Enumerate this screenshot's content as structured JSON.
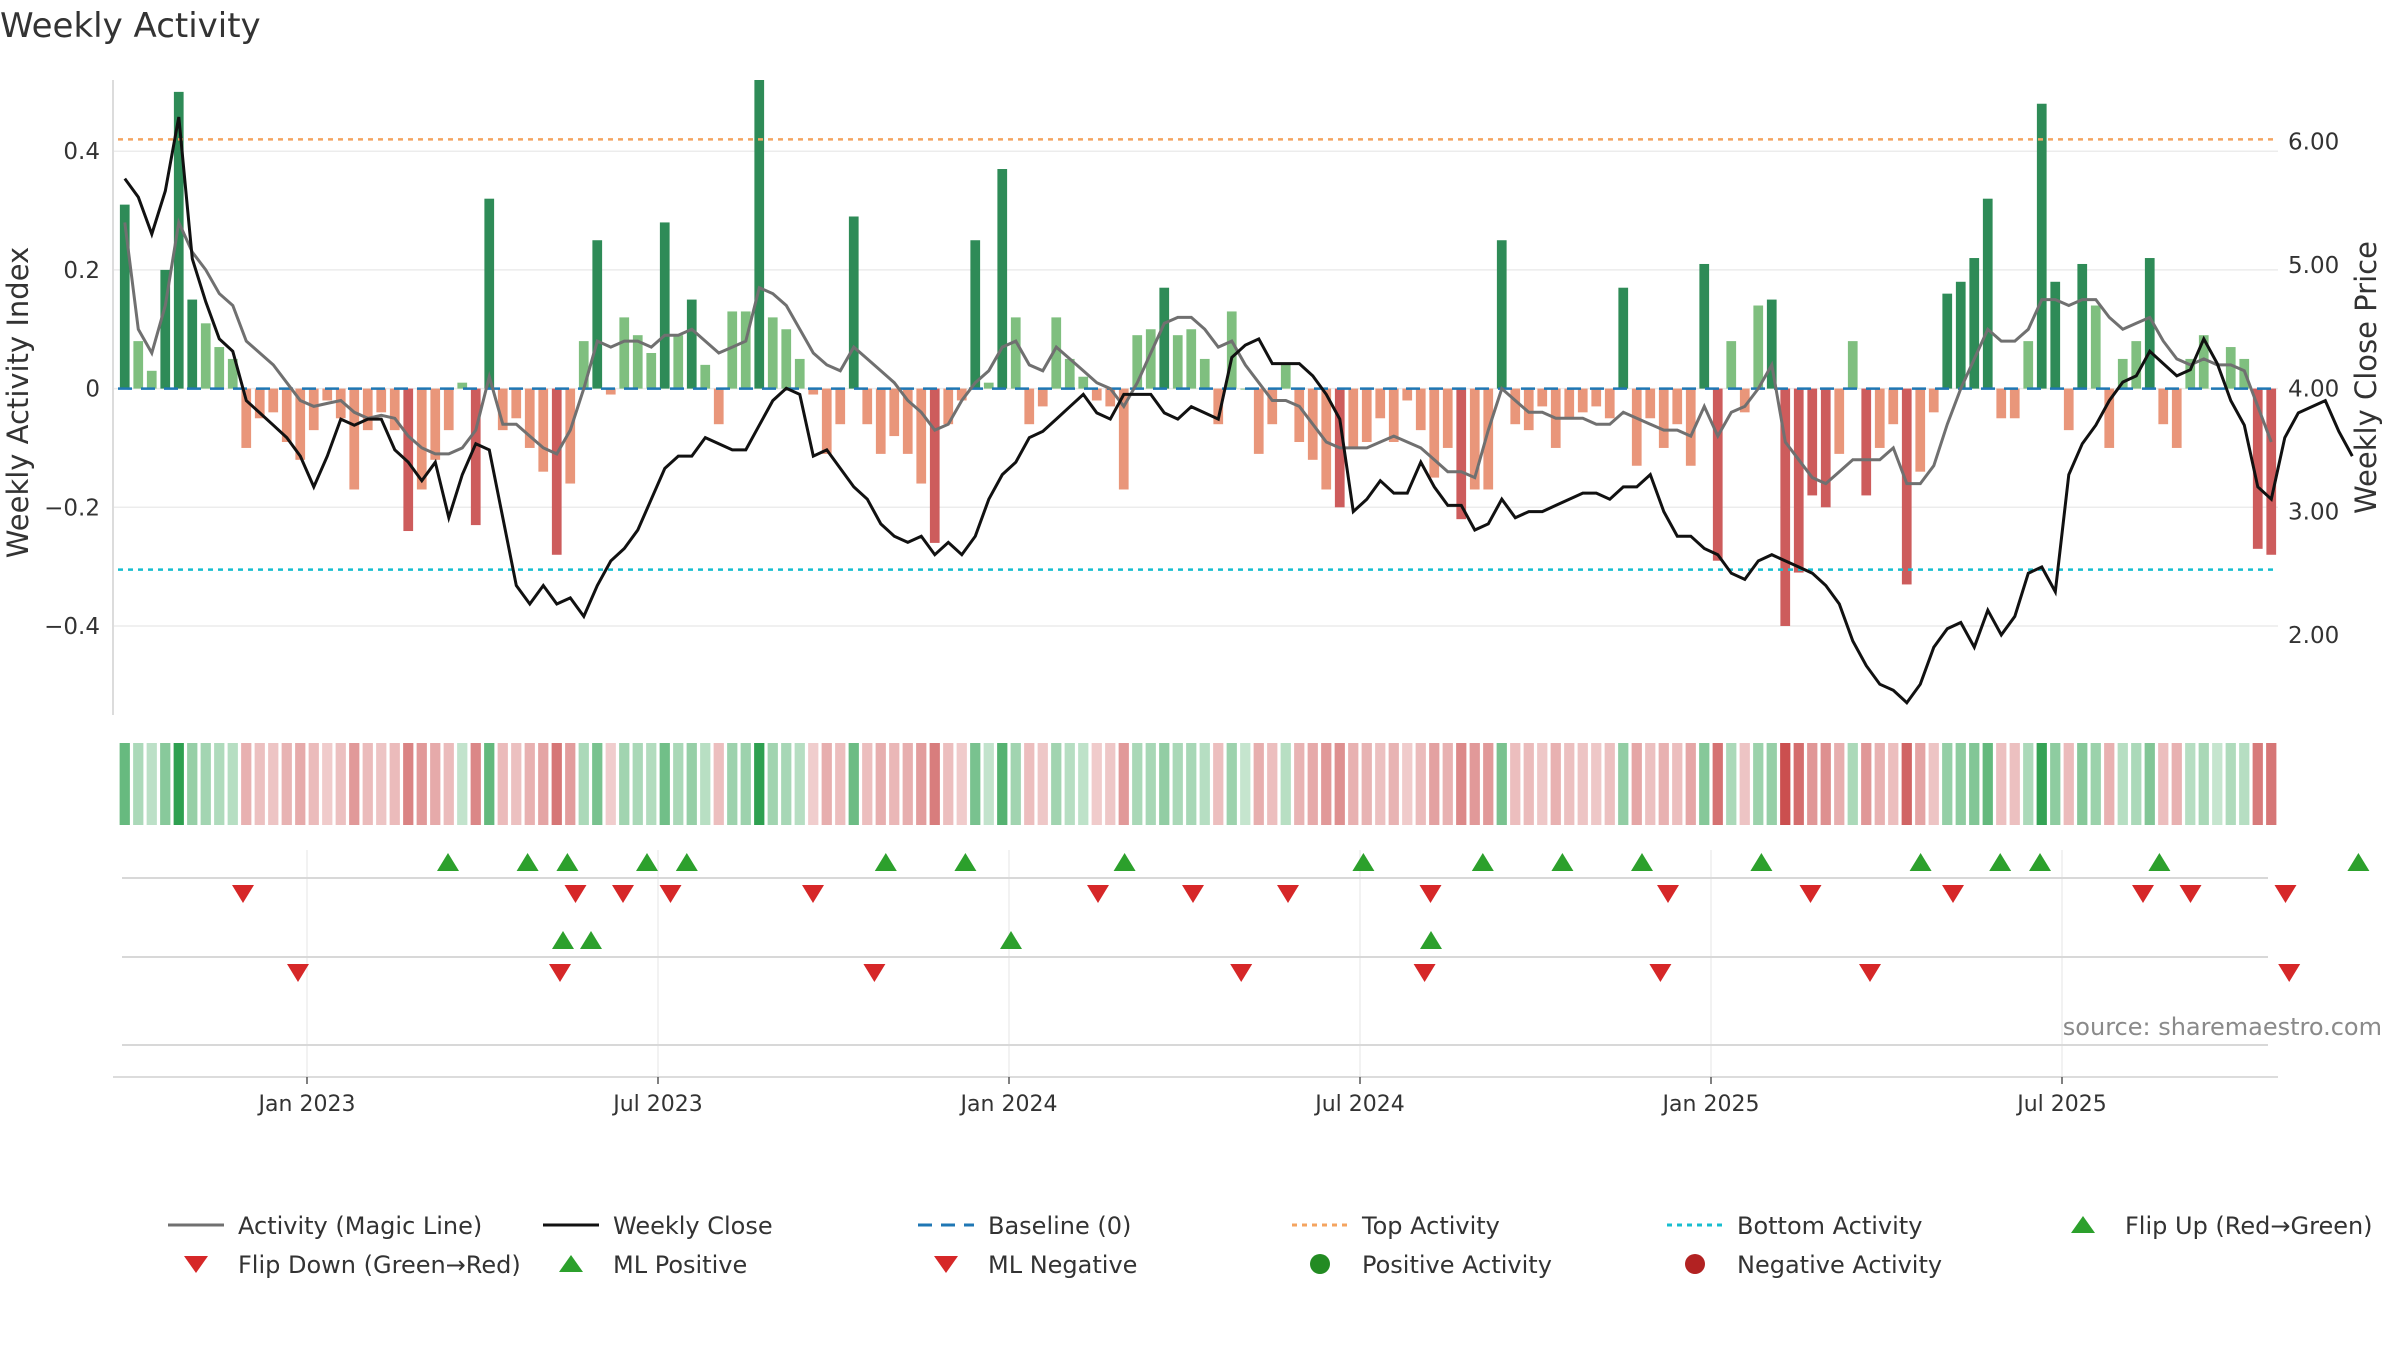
{
  "title": "Weekly Activity",
  "source": "source: sharemaestro.com",
  "chart_data": {
    "type": "bar",
    "ylabel": "Weekly Activity Index",
    "y2label": "Weekly Close Price",
    "ylim": [
      -0.55,
      0.52
    ],
    "y2lim": [
      1.35,
      6.5
    ],
    "yticks": [
      0.4,
      0.2,
      0,
      -0.2,
      -0.4
    ],
    "yticklabels": [
      "0.4",
      "0.2",
      "0",
      "−0.2",
      "−0.4"
    ],
    "y2ticks": [
      6.0,
      5.0,
      4.0,
      3.0,
      2.0
    ],
    "y2ticklabels": [
      "6.00",
      "5.00",
      "4.00",
      "3.00",
      "2.00"
    ],
    "xticks": [
      "Jan 2023",
      "Jul 2023",
      "Jan 2024",
      "Jul 2024",
      "Jan 2025",
      "Jul 2025"
    ],
    "xtick_weeks": [
      13.5,
      39.5,
      65.5,
      91.5,
      117.5,
      143.5
    ],
    "top_activity": 0.42,
    "bottom_activity": -0.305,
    "grid": true,
    "legend_position": "bottom",
    "legend": [
      "Activity (Magic Line)",
      "Weekly Close",
      "Baseline (0)",
      "Top Activity",
      "Bottom Activity",
      "Flip Up (Red→Green)",
      "Flip Down (Green→Red)",
      "ML Positive",
      "ML Negative",
      "Positive Activity",
      "Negative Activity"
    ],
    "colors": {
      "strong_green": "#2e8b57",
      "light_green": "#7fbf7f",
      "strong_red": "#cd5c5c",
      "light_red": "#e9967a",
      "magic_line": "#707070",
      "close": "#111111",
      "baseline": "#1f77b4",
      "top": "#f4a460",
      "bottom": "#17becf",
      "flip_up": "#2ca02c",
      "flip_down": "#d62728",
      "pos_dot": "#228b22",
      "neg_dot": "#b22222"
    },
    "activity": [
      0.31,
      0.08,
      0.03,
      0.2,
      0.5,
      0.15,
      0.11,
      0.07,
      0.05,
      -0.1,
      -0.05,
      -0.04,
      -0.09,
      -0.12,
      -0.07,
      -0.02,
      -0.05,
      -0.17,
      -0.07,
      -0.04,
      -0.07,
      -0.24,
      -0.17,
      -0.12,
      -0.07,
      0.01,
      -0.23,
      0.32,
      -0.07,
      -0.05,
      -0.1,
      -0.14,
      -0.28,
      -0.16,
      0.08,
      0.25,
      -0.01,
      0.12,
      0.09,
      0.06,
      0.28,
      0.09,
      0.15,
      0.04,
      -0.06,
      0.13,
      0.13,
      0.52,
      0.12,
      0.1,
      0.05,
      -0.01,
      -0.11,
      -0.06,
      0.29,
      -0.06,
      -0.11,
      -0.08,
      -0.11,
      -0.16,
      -0.26,
      -0.06,
      -0.02,
      0.25,
      0.01,
      0.37,
      0.12,
      -0.06,
      -0.03,
      0.12,
      0.05,
      0.02,
      -0.02,
      -0.03,
      -0.17,
      0.09,
      0.1,
      0.17,
      0.09,
      0.1,
      0.05,
      -0.06,
      0.13,
      0.0,
      -0.11,
      -0.06,
      0.04,
      -0.09,
      -0.12,
      -0.17,
      -0.2,
      -0.1,
      -0.09,
      -0.05,
      -0.09,
      -0.02,
      -0.07,
      -0.15,
      -0.1,
      -0.22,
      -0.17,
      -0.17,
      0.25,
      -0.06,
      -0.07,
      -0.03,
      -0.1,
      -0.05,
      -0.04,
      -0.03,
      -0.05,
      0.17,
      -0.13,
      -0.05,
      -0.1,
      -0.06,
      -0.13,
      0.21,
      -0.29,
      0.08,
      -0.04,
      0.14,
      0.15,
      -0.4,
      -0.31,
      -0.18,
      -0.2,
      -0.11,
      0.08,
      -0.18,
      -0.1,
      -0.06,
      -0.33,
      -0.14,
      -0.04,
      0.16,
      0.18,
      0.22,
      0.32,
      -0.05,
      -0.05,
      0.08,
      0.48,
      0.18,
      -0.07,
      0.21,
      0.14,
      -0.1,
      0.05,
      0.08,
      0.22,
      -0.06,
      -0.1,
      0.05,
      0.09,
      0.0,
      0.07,
      0.05,
      -0.27,
      -0.28
    ],
    "magic_line": [
      0.28,
      0.1,
      0.06,
      0.14,
      0.28,
      0.23,
      0.2,
      0.16,
      0.14,
      0.08,
      0.06,
      0.04,
      0.01,
      -0.02,
      -0.03,
      -0.025,
      -0.02,
      -0.04,
      -0.05,
      -0.045,
      -0.05,
      -0.08,
      -0.1,
      -0.11,
      -0.11,
      -0.1,
      -0.07,
      0.02,
      -0.06,
      -0.06,
      -0.08,
      -0.1,
      -0.11,
      -0.07,
      0.0,
      0.08,
      0.07,
      0.08,
      0.08,
      0.07,
      0.09,
      0.09,
      0.1,
      0.08,
      0.06,
      0.07,
      0.08,
      0.17,
      0.16,
      0.14,
      0.1,
      0.06,
      0.04,
      0.03,
      0.07,
      0.05,
      0.03,
      0.01,
      -0.02,
      -0.04,
      -0.07,
      -0.06,
      -0.02,
      0.01,
      0.03,
      0.07,
      0.08,
      0.04,
      0.03,
      0.07,
      0.05,
      0.03,
      0.01,
      0.0,
      -0.03,
      0.01,
      0.06,
      0.11,
      0.12,
      0.12,
      0.1,
      0.07,
      0.08,
      0.04,
      0.01,
      -0.02,
      -0.02,
      -0.03,
      -0.06,
      -0.09,
      -0.1,
      -0.1,
      -0.1,
      -0.09,
      -0.08,
      -0.09,
      -0.1,
      -0.12,
      -0.14,
      -0.14,
      -0.15,
      -0.07,
      0.0,
      -0.02,
      -0.04,
      -0.04,
      -0.05,
      -0.05,
      -0.05,
      -0.06,
      -0.06,
      -0.04,
      -0.05,
      -0.06,
      -0.07,
      -0.07,
      -0.08,
      -0.03,
      -0.08,
      -0.04,
      -0.03,
      0.0,
      0.04,
      -0.09,
      -0.12,
      -0.15,
      -0.16,
      -0.14,
      -0.12,
      -0.12,
      -0.12,
      -0.1,
      -0.16,
      -0.16,
      -0.13,
      -0.06,
      0.0,
      0.05,
      0.1,
      0.08,
      0.08,
      0.1,
      0.15,
      0.15,
      0.14,
      0.15,
      0.15,
      0.12,
      0.1,
      0.11,
      0.12,
      0.08,
      0.05,
      0.04,
      0.05,
      0.04,
      0.04,
      0.03,
      -0.03,
      -0.09
    ],
    "weekly_close": [
      5.7,
      5.55,
      5.25,
      5.6,
      6.2,
      5.05,
      4.7,
      4.4,
      4.3,
      3.9,
      3.8,
      3.7,
      3.6,
      3.45,
      3.2,
      3.45,
      3.75,
      3.7,
      3.75,
      3.75,
      3.5,
      3.4,
      3.25,
      3.4,
      2.95,
      3.3,
      3.55,
      3.5,
      2.95,
      2.4,
      2.25,
      2.4,
      2.25,
      2.3,
      2.15,
      2.4,
      2.6,
      2.7,
      2.85,
      3.1,
      3.35,
      3.45,
      3.45,
      3.6,
      3.55,
      3.5,
      3.5,
      3.7,
      3.9,
      4.0,
      3.95,
      3.45,
      3.5,
      3.35,
      3.2,
      3.1,
      2.9,
      2.8,
      2.75,
      2.8,
      2.65,
      2.75,
      2.65,
      2.8,
      3.1,
      3.3,
      3.4,
      3.6,
      3.65,
      3.75,
      3.85,
      3.95,
      3.8,
      3.75,
      3.95,
      3.95,
      3.95,
      3.8,
      3.75,
      3.85,
      3.8,
      3.75,
      4.25,
      4.35,
      4.4,
      4.2,
      4.2,
      4.2,
      4.1,
      3.95,
      3.75,
      3.0,
      3.1,
      3.25,
      3.15,
      3.15,
      3.4,
      3.2,
      3.05,
      3.05,
      2.85,
      2.9,
      3.1,
      2.95,
      3.0,
      3.0,
      3.05,
      3.1,
      3.15,
      3.15,
      3.1,
      3.2,
      3.2,
      3.3,
      3.0,
      2.8,
      2.8,
      2.7,
      2.65,
      2.5,
      2.45,
      2.6,
      2.65,
      2.6,
      2.55,
      2.5,
      2.4,
      2.25,
      1.95,
      1.75,
      1.6,
      1.55,
      1.45,
      1.6,
      1.9,
      2.05,
      2.1,
      1.9,
      2.2,
      2.0,
      2.15,
      2.5,
      2.55,
      2.35,
      3.3,
      3.55,
      3.7,
      3.9,
      4.05,
      4.1,
      4.3,
      4.2,
      4.1,
      4.15,
      4.4,
      4.2,
      3.9,
      3.7,
      3.2,
      3.1,
      3.6,
      3.8,
      3.85,
      3.9,
      3.65,
      3.45
    ],
    "markers": {
      "row1_flip_up": [
        13,
        15,
        16,
        18,
        19,
        24,
        26,
        30,
        36,
        39,
        41,
        43,
        46,
        50,
        52,
        53,
        56,
        61,
        64,
        65,
        67,
        70,
        71,
        77,
        81,
        82,
        83,
        84,
        87
      ],
      "row1_flip_down": [
        6,
        13,
        14,
        15,
        18,
        24,
        26,
        28,
        31,
        36,
        39,
        42,
        46,
        47,
        49,
        52,
        56,
        63,
        64,
        66,
        69,
        74,
        75,
        76,
        77,
        79
      ],
      "row2_flip_up": [
        18,
        19,
        34,
        49
      ],
      "row2_flip_down": [
        8,
        18,
        30,
        44,
        51,
        60,
        68,
        84
      ]
    }
  }
}
